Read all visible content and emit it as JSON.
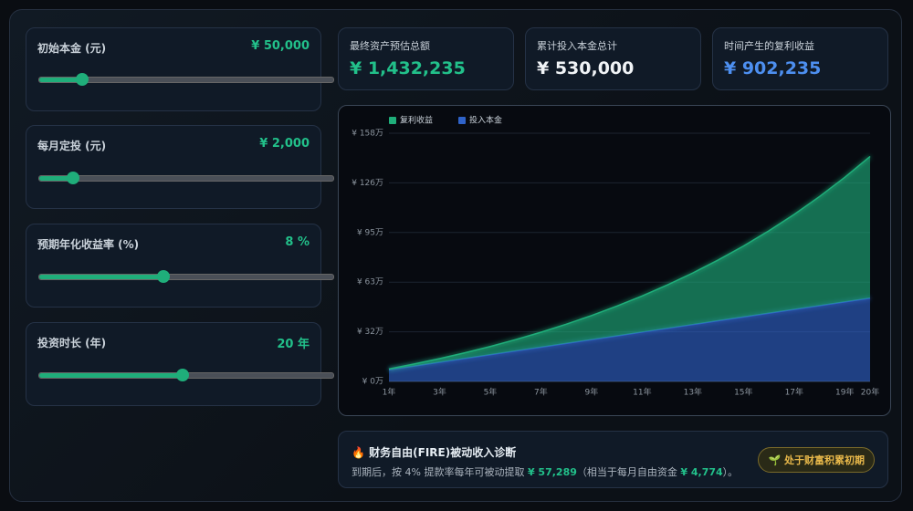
{
  "controls": [
    {
      "label": "初始本金 (元)",
      "value": "¥ 50,000"
    },
    {
      "label": "每月定投 (元)",
      "value": "¥ 2,000"
    },
    {
      "label": "预期年化收益率 (%)",
      "value": "8 %"
    },
    {
      "label": "投资时长 (年)",
      "value": "20 年"
    }
  ],
  "stats": [
    {
      "label": "最终资产预估总额",
      "value": "¥ 1,432,235"
    },
    {
      "label": "累计投入本金总计",
      "value": "¥ 530,000"
    },
    {
      "label": "时间产生的复利收益",
      "value": "¥ 902,235"
    }
  ],
  "chart_data": {
    "type": "area",
    "stacked": true,
    "legend": "top-left",
    "grid": true,
    "categories": [
      "1年",
      null,
      "3年",
      null,
      "5年",
      null,
      "7年",
      null,
      "9年",
      null,
      "11年",
      null,
      "13年",
      null,
      "15年",
      null,
      "17年",
      null,
      "19年",
      "20年"
    ],
    "series": [
      {
        "name": "复利收益",
        "color": "#1fae7a",
        "values": [
          0.52,
          1.29,
          2.31,
          3.62,
          5.24,
          7.2,
          9.51,
          12.22,
          15.34,
          18.93,
          23.02,
          27.64,
          32.85,
          38.68,
          45.2,
          52.47,
          60.53,
          69.46,
          79.33,
          90.22
        ]
      },
      {
        "name": "投入本金",
        "color": "#2f63c9",
        "values": [
          7.4,
          9.8,
          12.2,
          14.6,
          17.0,
          19.4,
          21.8,
          24.2,
          26.6,
          29.0,
          31.4,
          33.8,
          36.2,
          38.6,
          41.0,
          43.4,
          45.8,
          48.2,
          50.6,
          53.0
        ]
      }
    ],
    "ylim": [
      0,
      158
    ],
    "yticks": [
      {
        "value": 0,
        "label": "¥ 0万"
      },
      {
        "value": 31.6,
        "label": "¥ 32万"
      },
      {
        "value": 63.2,
        "label": "¥ 63万"
      },
      {
        "value": 94.8,
        "label": "¥ 95万"
      },
      {
        "value": 126.4,
        "label": "¥ 126万"
      },
      {
        "value": 158,
        "label": "¥ 158万"
      }
    ]
  },
  "fire": {
    "icon": "🔥",
    "title": "财务自由(FIRE)被动收入诊断",
    "text": [
      "到期后，按 4% 提款率每年可被动提取 ",
      "¥ 57,289",
      "（相当于每月自由资金 ",
      "¥ 4,774",
      "）。"
    ],
    "badge_icon": "🌱",
    "badge": "处于财富积累初期"
  }
}
